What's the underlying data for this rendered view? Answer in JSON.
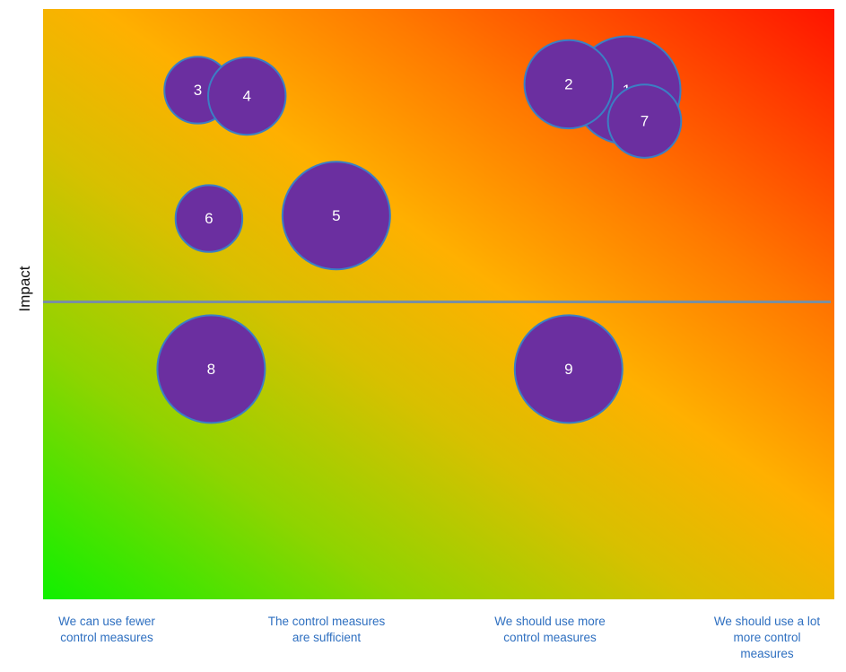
{
  "chart_data": {
    "type": "scatter",
    "title": "",
    "ylabel": "Impact",
    "xlabel": "",
    "x_categories": [
      "We can use fewer\ncontrol measures",
      "The control measures\nare sufficient",
      "We should use more\ncontrol measures",
      "We should use a lot\nmore control\nmeasures"
    ],
    "xlim": [
      0,
      4
    ],
    "ylim": [
      0,
      4
    ],
    "grid": false,
    "midline_y": 2,
    "bubble_color": "#6b2fa0",
    "bubble_border": "#3b7fc4",
    "points": [
      {
        "label": "1",
        "x": 2.96,
        "y": 3.45,
        "size": 1.0
      },
      {
        "label": "2",
        "x": 2.7,
        "y": 3.49,
        "size": 0.82
      },
      {
        "label": "7",
        "x": 3.04,
        "y": 3.24,
        "size": 0.68
      },
      {
        "label": "3",
        "x": 1.04,
        "y": 3.45,
        "size": 0.62
      },
      {
        "label": "4",
        "x": 1.26,
        "y": 3.41,
        "size": 0.72
      },
      {
        "label": "6",
        "x": 1.09,
        "y": 2.58,
        "size": 0.62
      },
      {
        "label": "5",
        "x": 1.66,
        "y": 2.6,
        "size": 1.0
      },
      {
        "label": "8",
        "x": 1.1,
        "y": 1.56,
        "size": 1.0
      },
      {
        "label": "9",
        "x": 2.7,
        "y": 1.56,
        "size": 1.0
      }
    ]
  }
}
